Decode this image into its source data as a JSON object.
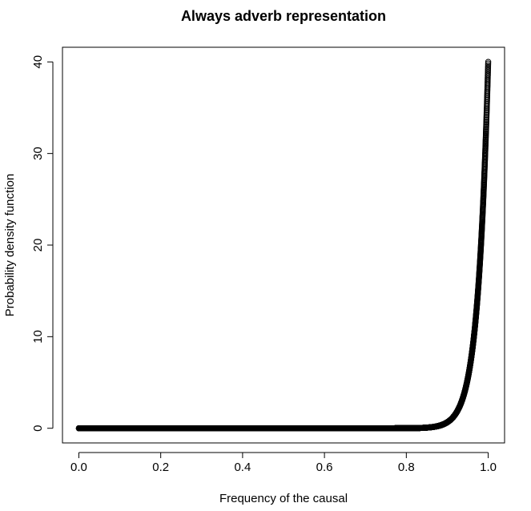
{
  "chart_data": {
    "type": "scatter",
    "title": "Always adverb representation",
    "xlabel": "Frequency of the causal",
    "ylabel": "Probability density function",
    "xlim": [
      -0.04,
      1.04
    ],
    "ylim": [
      -1.6,
      41.6
    ],
    "x_ticks": [
      "0.0",
      "0.2",
      "0.4",
      "0.6",
      "0.8",
      "1.0"
    ],
    "y_ticks": [
      "0",
      "10",
      "20",
      "30",
      "40"
    ],
    "series": [
      {
        "marker": "open-circle",
        "color": "#000000",
        "function": "pdf(x) = 40 * x^39 (Beta(40,1) density), sampled densely on [0, 1]",
        "sample": [
          [
            0.0,
            0.0
          ],
          [
            0.8,
            0.0
          ],
          [
            0.85,
            0.07
          ],
          [
            0.9,
            0.66
          ],
          [
            0.92,
            1.56
          ],
          [
            0.94,
            3.59
          ],
          [
            0.96,
            8.1
          ],
          [
            0.97,
            12.1
          ],
          [
            0.98,
            18.1
          ],
          [
            0.99,
            26.9
          ],
          [
            1.0,
            40.0
          ]
        ]
      }
    ],
    "grid": false,
    "legend": "none"
  }
}
